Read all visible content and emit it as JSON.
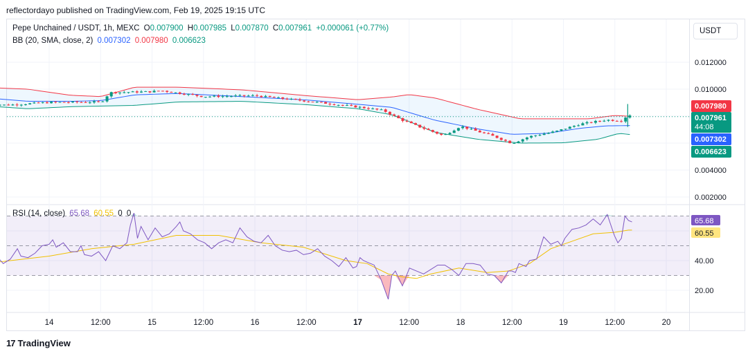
{
  "header": {
    "publisher": "reflectordayo published on TradingView.com, Feb 19, 2025 19:15 UTC"
  },
  "legend": {
    "symbol": "Pepe Unchained / USDT, 1h, MEXC",
    "o_label": "O",
    "o_value": "0.007900",
    "h_label": "H",
    "h_value": "0.007985",
    "l_label": "L",
    "l_value": "0.007870",
    "c_label": "C",
    "c_value": "0.007961",
    "change": "+0.000061 (+0.77%)",
    "bb_label": "BB (20, SMA, close, 2)",
    "bb_basis": "0.007302",
    "bb_upper": "0.007980",
    "bb_lower": "0.006623",
    "rsi_label": "RSI (14, close)",
    "rsi_value": "65.68",
    "rsi_ma": "60.55",
    "rsi_extra1": "0",
    "rsi_extra2": "0"
  },
  "currency_button": "USDT",
  "footer": {
    "brand": "TradingView"
  },
  "colors": {
    "up": "#089981",
    "down": "#f23645",
    "basis": "#2962ff",
    "rsi": "#7e57c2",
    "rsi_ma": "#f0c000"
  },
  "chart_data": [
    {
      "type": "candlestick",
      "title": "Pepe Unchained / USDT, 1h, MEXC",
      "y_axis_ticks": [
        "0.012000",
        "0.010000",
        "0.004000",
        "0.002000"
      ],
      "ylim": [
        0.0015,
        0.0142
      ],
      "last_price_label": "0.007961",
      "countdown": "44:08",
      "bb_labels": {
        "upper": "0.007980",
        "basis": "0.007302",
        "lower": "0.006623"
      },
      "x_ticks": [
        "14",
        "12:00",
        "15",
        "12:00",
        "16",
        "12:00",
        "17",
        "12:00",
        "18",
        "12:00",
        "19",
        "12:00",
        "20"
      ],
      "x_tick_hours": [
        0,
        12,
        24,
        36,
        48,
        60,
        72,
        84,
        96,
        108,
        120,
        132,
        144
      ],
      "candles_hour_range": [
        -14.5,
        136
      ],
      "close_path": [
        [
          -14.5,
          0.00892
        ],
        [
          -10,
          0.00882
        ],
        [
          0,
          0.00902
        ],
        [
          12,
          0.00905
        ],
        [
          13,
          0.00925
        ],
        [
          14,
          0.00975
        ],
        [
          24,
          0.00982
        ],
        [
          26,
          0.0099
        ],
        [
          36,
          0.00945
        ],
        [
          48,
          0.00952
        ],
        [
          60,
          0.00912
        ],
        [
          72,
          0.00868
        ],
        [
          78,
          0.00842
        ],
        [
          82,
          0.00775
        ],
        [
          86,
          0.00725
        ],
        [
          92,
          0.00655
        ],
        [
          96,
          0.00725
        ],
        [
          104,
          0.00648
        ],
        [
          108,
          0.00598
        ],
        [
          112,
          0.00648
        ],
        [
          118,
          0.00685
        ],
        [
          124,
          0.00742
        ],
        [
          130,
          0.00772
        ],
        [
          134,
          0.00765
        ],
        [
          135,
          0.0082
        ],
        [
          136,
          0.00796
        ]
      ],
      "bollinger": {
        "upper": [
          [
            -14.5,
            0.01012
          ],
          [
            -5,
            0.01
          ],
          [
            5,
            0.00955
          ],
          [
            12,
            0.00945
          ],
          [
            20,
            0.01015
          ],
          [
            30,
            0.01015
          ],
          [
            45,
            0.00995
          ],
          [
            60,
            0.00952
          ],
          [
            72,
            0.00922
          ],
          [
            80,
            0.00942
          ],
          [
            84,
            0.0096
          ],
          [
            90,
            0.00935
          ],
          [
            100,
            0.0085
          ],
          [
            110,
            0.0078
          ],
          [
            118,
            0.0078
          ],
          [
            126,
            0.0078
          ],
          [
            132,
            0.00805
          ],
          [
            136,
            0.00798
          ]
        ],
        "basis": [
          [
            -14.5,
            0.00935
          ],
          [
            -5,
            0.0091
          ],
          [
            5,
            0.0091
          ],
          [
            12,
            0.00915
          ],
          [
            20,
            0.00958
          ],
          [
            30,
            0.00968
          ],
          [
            45,
            0.00945
          ],
          [
            60,
            0.0092
          ],
          [
            72,
            0.00888
          ],
          [
            80,
            0.00865
          ],
          [
            90,
            0.0077
          ],
          [
            100,
            0.00705
          ],
          [
            108,
            0.00665
          ],
          [
            116,
            0.00672
          ],
          [
            124,
            0.0071
          ],
          [
            130,
            0.00728
          ],
          [
            136,
            0.0073
          ]
        ],
        "lower": [
          [
            -14.5,
            0.00875
          ],
          [
            -5,
            0.00855
          ],
          [
            5,
            0.0087
          ],
          [
            12,
            0.00875
          ],
          [
            20,
            0.0088
          ],
          [
            30,
            0.00905
          ],
          [
            45,
            0.0091
          ],
          [
            60,
            0.00885
          ],
          [
            72,
            0.00855
          ],
          [
            80,
            0.0081
          ],
          [
            84,
            0.0076
          ],
          [
            90,
            0.0068
          ],
          [
            100,
            0.00628
          ],
          [
            110,
            0.006
          ],
          [
            120,
            0.00602
          ],
          [
            128,
            0.00628
          ],
          [
            133,
            0.00672
          ],
          [
            136,
            0.00662
          ]
        ]
      }
    },
    {
      "type": "line",
      "title": "RSI (14, close)",
      "y_axis_ticks": [
        "40.00",
        "20.00"
      ],
      "ylim": [
        5,
        80
      ],
      "bands": [
        30,
        50,
        70
      ],
      "last_values": {
        "rsi": "65.68",
        "rsi_ma": "60.55"
      },
      "series": [
        {
          "name": "",
          "points": [
            [
              -14.5,
              42
            ],
            [
              -13,
              38
            ],
            [
              -11,
              41
            ],
            [
              -9,
              48
            ],
            [
              -8,
              43
            ],
            [
              -6,
              42
            ],
            [
              -4,
              45
            ],
            [
              -2,
              50
            ],
            [
              0,
              51
            ],
            [
              1,
              54
            ],
            [
              2,
              49
            ],
            [
              4,
              52
            ],
            [
              6,
              46
            ],
            [
              8,
              46
            ],
            [
              9,
              50
            ],
            [
              10,
              44
            ],
            [
              12,
              43
            ],
            [
              14,
              46
            ],
            [
              16,
              40
            ],
            [
              18,
              50
            ],
            [
              20,
              48
            ],
            [
              22,
              52
            ],
            [
              23,
              64
            ],
            [
              24,
              72
            ],
            [
              25,
              55
            ],
            [
              26,
              63
            ],
            [
              28,
              54
            ],
            [
              30,
              62
            ],
            [
              32,
              56
            ],
            [
              34,
              58
            ],
            [
              36,
              63
            ],
            [
              37,
              66
            ],
            [
              38,
              60
            ],
            [
              40,
              58
            ],
            [
              42,
              54
            ],
            [
              44,
              52
            ],
            [
              46,
              48
            ],
            [
              48,
              52
            ],
            [
              50,
              54
            ],
            [
              52,
              52
            ],
            [
              54,
              62
            ],
            [
              56,
              56
            ],
            [
              58,
              53
            ],
            [
              60,
              52
            ],
            [
              62,
              57
            ],
            [
              64,
              50
            ],
            [
              66,
              47
            ],
            [
              68,
              46
            ],
            [
              70,
              47
            ],
            [
              72,
              44
            ],
            [
              74,
              45
            ],
            [
              76,
              48
            ],
            [
              78,
              43
            ],
            [
              80,
              40
            ],
            [
              82,
              36
            ],
            [
              84,
              42
            ],
            [
              86,
              35
            ],
            [
              87,
              36
            ],
            [
              88,
              42
            ],
            [
              89,
              40
            ],
            [
              90,
              39
            ],
            [
              92,
              37
            ],
            [
              94,
              27
            ],
            [
              96,
              14
            ],
            [
              97,
              30
            ],
            [
              98,
              33
            ],
            [
              100,
              23
            ],
            [
              102,
              35
            ],
            [
              104,
              33
            ],
            [
              106,
              31
            ],
            [
              108,
              34
            ],
            [
              110,
              37
            ],
            [
              112,
              37
            ],
            [
              114,
              34
            ],
            [
              116,
              30
            ],
            [
              118,
              38
            ],
            [
              120,
              38
            ],
            [
              122,
              37
            ],
            [
              124,
              31
            ],
            [
              126,
              30
            ],
            [
              128,
              25
            ],
            [
              130,
              33
            ],
            [
              131,
              33
            ],
            [
              132,
              32
            ],
            [
              133,
              38
            ],
            [
              134,
              37
            ],
            [
              135,
              36
            ],
            [
              136,
              40
            ],
            [
              138,
              41
            ],
            [
              140,
              56
            ],
            [
              142,
              51
            ],
            [
              144,
              53
            ],
            [
              145,
              50
            ],
            [
              146,
              55
            ],
            [
              148,
              61
            ],
            [
              150,
              62
            ],
            [
              152,
              64
            ],
            [
              154,
              68
            ],
            [
              156,
              64
            ],
            [
              158,
              71
            ],
            [
              160,
              57
            ],
            [
              161,
              52
            ],
            [
              162,
              55
            ],
            [
              163,
              70
            ],
            [
              164,
              67
            ],
            [
              165,
              66
            ]
          ]
        },
        {
          "name": "",
          "points": [
            [
              -14.5,
              39
            ],
            [
              0,
              43
            ],
            [
              12,
              48
            ],
            [
              24,
              51
            ],
            [
              36,
              57
            ],
            [
              48,
              57
            ],
            [
              60,
              52
            ],
            [
              72,
              49
            ],
            [
              84,
              40
            ],
            [
              90,
              38
            ],
            [
              96,
              31
            ],
            [
              100,
              29
            ],
            [
              104,
              28
            ],
            [
              108,
              31
            ],
            [
              116,
              35
            ],
            [
              124,
              32
            ],
            [
              130,
              33
            ],
            [
              136,
              38
            ],
            [
              142,
              48
            ],
            [
              148,
              53
            ],
            [
              154,
              58
            ],
            [
              160,
              59
            ],
            [
              164,
              60.5
            ],
            [
              165,
              60.55
            ]
          ]
        }
      ]
    }
  ]
}
